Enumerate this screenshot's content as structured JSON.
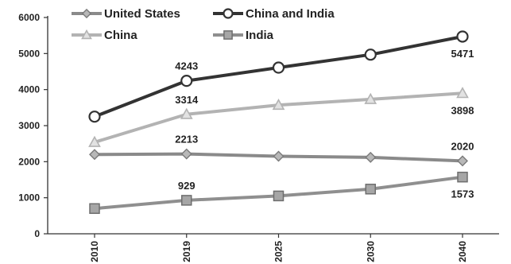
{
  "chart_data": {
    "type": "line",
    "title": "",
    "xlabel": "",
    "ylabel": "",
    "categories": [
      "2010",
      "2019",
      "2025",
      "2030",
      "2040"
    ],
    "ylim": [
      0,
      6000
    ],
    "yticks": [
      0,
      1000,
      2000,
      3000,
      4000,
      5000,
      6000
    ],
    "grid": false,
    "legend_position": "top",
    "series": [
      {
        "name": "United States",
        "values": [
          2200,
          2213,
          2150,
          2120,
          2020
        ],
        "color": "#8a8a8a",
        "marker": "diamond"
      },
      {
        "name": "China and India",
        "values": [
          3250,
          4243,
          4610,
          4970,
          5471
        ],
        "color": "#333333",
        "marker": "circle"
      },
      {
        "name": "China",
        "values": [
          2540,
          3314,
          3570,
          3730,
          3898
        ],
        "color": "#b3b3b3",
        "marker": "triangle"
      },
      {
        "name": "India",
        "values": [
          700,
          929,
          1050,
          1240,
          1573
        ],
        "color": "#8f8f8f",
        "marker": "square"
      }
    ],
    "data_labels": [
      {
        "series": 1,
        "index": 1,
        "text": "4243"
      },
      {
        "series": 1,
        "index": 4,
        "text": "5471"
      },
      {
        "series": 2,
        "index": 1,
        "text": "3314"
      },
      {
        "series": 2,
        "index": 4,
        "text": "3898"
      },
      {
        "series": 0,
        "index": 1,
        "text": "2213"
      },
      {
        "series": 0,
        "index": 4,
        "text": "2020"
      },
      {
        "series": 3,
        "index": 1,
        "text": "929"
      },
      {
        "series": 3,
        "index": 4,
        "text": "1573"
      }
    ]
  }
}
